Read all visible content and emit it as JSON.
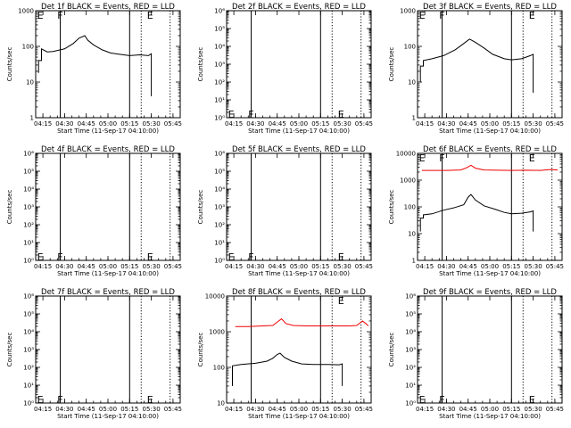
{
  "chart_data": [
    {
      "type": "line",
      "title": "Det 1f BLACK = Events, RED = LLD",
      "ylabel": "Counts/sec",
      "xlabel": "Start Time (11-Sep-17 04:10:00)",
      "xticks": [
        "04:15",
        "04:30",
        "04:45",
        "05:00",
        "05:15",
        "05:30",
        "05:45"
      ],
      "xlim": [
        "04:10",
        "05:50"
      ],
      "yscale": "log",
      "ylim": [
        1,
        1000
      ],
      "yticks": [
        "1",
        "10",
        "100",
        "1000"
      ],
      "markers": [
        {
          "label": "E",
          "x": "04:11",
          "y": 1000
        },
        {
          "label": "F",
          "x": "04:25",
          "y": 1000
        },
        {
          "label": "E",
          "x": "05:27",
          "y": 1000
        }
      ],
      "vlines_solid": [
        "04:27",
        "05:15"
      ],
      "vlines_dotted": [
        "05:23",
        "05:43"
      ],
      "series": [
        {
          "color": "#000000",
          "data": [
            [
              "04:12",
              18
            ],
            [
              "04:12",
              40
            ],
            [
              "04:14",
              40
            ],
            [
              "04:14",
              85
            ],
            [
              "04:18",
              70
            ],
            [
              "04:22",
              72
            ],
            [
              "04:30",
              85
            ],
            [
              "04:36",
              120
            ],
            [
              "04:40",
              170
            ],
            [
              "04:44",
              200
            ],
            [
              "04:46",
              150
            ],
            [
              "04:50",
              110
            ],
            [
              "04:56",
              80
            ],
            [
              "05:02",
              65
            ],
            [
              "05:08",
              60
            ],
            [
              "05:15",
              55
            ],
            [
              "05:22",
              58
            ],
            [
              "05:28",
              55
            ],
            [
              "05:30",
              62
            ],
            [
              "05:30",
              4
            ]
          ]
        }
      ]
    },
    {
      "type": "line",
      "title": "Det 2f BLACK = Events, RED = LLD",
      "ylabel": "Counts/sec",
      "xlabel": "Start Time (11-Sep-17 04:10:00)",
      "xticks": [
        "04:15",
        "04:30",
        "04:45",
        "05:00",
        "05:15",
        "05:30",
        "05:45"
      ],
      "xlim": [
        "04:10",
        "05:50"
      ],
      "yscale": "log",
      "ylim": [
        1,
        1000000
      ],
      "yticks": [
        "10⁰",
        "10¹",
        "10²",
        "10³",
        "10⁴",
        "10⁵",
        "10⁶"
      ],
      "markers": [
        {
          "label": "E",
          "x": "04:11",
          "y": 1.6
        },
        {
          "label": "F",
          "x": "04:25",
          "y": 1.6
        },
        {
          "label": "E",
          "x": "05:27",
          "y": 1.6
        }
      ],
      "vlines_solid": [
        "04:27",
        "05:15"
      ],
      "vlines_dotted": [
        "05:23",
        "05:43"
      ],
      "series": []
    },
    {
      "type": "line",
      "title": "Det 3f BLACK = Events, RED = LLD",
      "ylabel": "Counts/sec",
      "xlabel": "Start Time (11-Sep-17 04:10:00)",
      "xticks": [
        "04:15",
        "04:30",
        "04:45",
        "05:00",
        "05:15",
        "05:30",
        "05:45"
      ],
      "xlim": [
        "04:10",
        "05:50"
      ],
      "yscale": "log",
      "ylim": [
        1,
        1000
      ],
      "yticks": [
        "1",
        "10",
        "100",
        "1000"
      ],
      "markers": [
        {
          "label": "E",
          "x": "04:11",
          "y": 1000
        },
        {
          "label": "F",
          "x": "04:25",
          "y": 1000
        },
        {
          "label": "E",
          "x": "05:27",
          "y": 1000
        }
      ],
      "vlines_solid": [
        "04:27",
        "05:15"
      ],
      "vlines_dotted": [
        "05:23",
        "05:43"
      ],
      "series": [
        {
          "color": "#000000",
          "data": [
            [
              "04:12",
              10
            ],
            [
              "04:12",
              28
            ],
            [
              "04:14",
              28
            ],
            [
              "04:14",
              40
            ],
            [
              "04:20",
              45
            ],
            [
              "04:28",
              55
            ],
            [
              "04:36",
              80
            ],
            [
              "04:42",
              120
            ],
            [
              "04:46",
              160
            ],
            [
              "04:50",
              130
            ],
            [
              "04:56",
              90
            ],
            [
              "05:02",
              60
            ],
            [
              "05:10",
              45
            ],
            [
              "05:15",
              42
            ],
            [
              "05:22",
              45
            ],
            [
              "05:28",
              55
            ],
            [
              "05:30",
              60
            ],
            [
              "05:30",
              5
            ]
          ]
        }
      ]
    },
    {
      "type": "line",
      "title": "Det 4f BLACK = Events, RED = LLD",
      "ylabel": "Counts/sec",
      "xlabel": "Start Time (11-Sep-17 04:10:00)",
      "xticks": [
        "04:15",
        "04:30",
        "04:45",
        "05:00",
        "05:15",
        "05:30",
        "05:45"
      ],
      "xlim": [
        "04:10",
        "05:50"
      ],
      "yscale": "log",
      "ylim": [
        1,
        1000000
      ],
      "yticks": [
        "10⁰",
        "10¹",
        "10²",
        "10³",
        "10⁴",
        "10⁵",
        "10⁶"
      ],
      "markers": [
        {
          "label": "E",
          "x": "04:11",
          "y": 1.6
        },
        {
          "label": "F",
          "x": "04:25",
          "y": 1.6
        },
        {
          "label": "E",
          "x": "05:27",
          "y": 1.6
        }
      ],
      "vlines_solid": [
        "04:27",
        "05:15"
      ],
      "vlines_dotted": [
        "05:23",
        "05:43"
      ],
      "series": []
    },
    {
      "type": "line",
      "title": "Det 5f BLACK = Events, RED = LLD",
      "ylabel": "Counts/sec",
      "xlabel": "Start Time (11-Sep-17 04:10:00)",
      "xticks": [
        "04:15",
        "04:30",
        "04:45",
        "05:00",
        "05:15",
        "05:30",
        "05:45"
      ],
      "xlim": [
        "04:10",
        "05:50"
      ],
      "yscale": "log",
      "ylim": [
        1,
        1000000
      ],
      "yticks": [
        "10⁰",
        "10¹",
        "10²",
        "10³",
        "10⁴",
        "10⁵",
        "10⁶"
      ],
      "markers": [
        {
          "label": "E",
          "x": "04:11",
          "y": 1.6
        },
        {
          "label": "F",
          "x": "04:25",
          "y": 1.6
        },
        {
          "label": "E",
          "x": "05:27",
          "y": 1.6
        }
      ],
      "vlines_solid": [
        "04:27",
        "05:15"
      ],
      "vlines_dotted": [
        "05:23",
        "05:43"
      ],
      "series": []
    },
    {
      "type": "line",
      "title": "Det 6f BLACK = Events, RED = LLD",
      "ylabel": "Counts/sec",
      "xlabel": "Start Time (11-Sep-17 04:10:00)",
      "xticks": [
        "04:15",
        "04:30",
        "04:45",
        "05:00",
        "05:15",
        "05:30",
        "05:45"
      ],
      "xlim": [
        "04:10",
        "05:50"
      ],
      "yscale": "log",
      "ylim": [
        1,
        10000
      ],
      "yticks": [
        "1",
        "10",
        "100",
        "1000",
        "10000"
      ],
      "markers": [
        {
          "label": "E",
          "x": "04:11",
          "y": 10000
        },
        {
          "label": "F",
          "x": "04:25",
          "y": 10000
        },
        {
          "label": "E",
          "x": "05:27",
          "y": 10000
        }
      ],
      "vlines_solid": [
        "04:27",
        "05:15"
      ],
      "vlines_dotted": [
        "05:23",
        "05:43"
      ],
      "series": [
        {
          "color": "#ee0000",
          "data": [
            [
              "04:13",
              2300
            ],
            [
              "04:20",
              2300
            ],
            [
              "04:30",
              2300
            ],
            [
              "04:40",
              2400
            ],
            [
              "04:44",
              2900
            ],
            [
              "04:47",
              3600
            ],
            [
              "04:50",
              2800
            ],
            [
              "04:56",
              2400
            ],
            [
              "05:05",
              2350
            ],
            [
              "05:15",
              2300
            ],
            [
              "05:25",
              2350
            ],
            [
              "05:35",
              2300
            ],
            [
              "05:42",
              2500
            ],
            [
              "05:47",
              2400
            ]
          ]
        },
        {
          "color": "#000000",
          "data": [
            [
              "04:12",
              12
            ],
            [
              "04:12",
              38
            ],
            [
              "04:14",
              38
            ],
            [
              "04:14",
              50
            ],
            [
              "04:20",
              55
            ],
            [
              "04:28",
              75
            ],
            [
              "04:36",
              95
            ],
            [
              "04:42",
              120
            ],
            [
              "04:45",
              230
            ],
            [
              "04:47",
              290
            ],
            [
              "04:50",
              180
            ],
            [
              "04:56",
              110
            ],
            [
              "05:04",
              80
            ],
            [
              "05:10",
              62
            ],
            [
              "05:15",
              55
            ],
            [
              "05:22",
              58
            ],
            [
              "05:28",
              65
            ],
            [
              "05:30",
              70
            ],
            [
              "05:30",
              12
            ]
          ]
        }
      ]
    },
    {
      "type": "line",
      "title": "Det 7f BLACK = Events, RED = LLD",
      "ylabel": "Counts/sec",
      "xlabel": "Start Time (11-Sep-17 04:10:00)",
      "xticks": [
        "04:15",
        "04:30",
        "04:45",
        "05:00",
        "05:15",
        "05:30",
        "05:45"
      ],
      "xlim": [
        "04:10",
        "05:50"
      ],
      "yscale": "log",
      "ylim": [
        1,
        1000000
      ],
      "yticks": [
        "10⁰",
        "10¹",
        "10²",
        "10³",
        "10⁴",
        "10⁵",
        "10⁶"
      ],
      "markers": [
        {
          "label": "E",
          "x": "04:11",
          "y": 1.6
        },
        {
          "label": "F",
          "x": "04:25",
          "y": 1.6
        },
        {
          "label": "E",
          "x": "05:27",
          "y": 1.6
        }
      ],
      "vlines_solid": [
        "04:27",
        "05:15"
      ],
      "vlines_dotted": [
        "05:23",
        "05:43"
      ],
      "series": []
    },
    {
      "type": "line",
      "title": "Det 8f BLACK = Events, RED = LLD",
      "ylabel": "Counts/sec",
      "xlabel": "Start Time (11-Sep-17 04:10:00)",
      "xticks": [
        "04:15",
        "04:30",
        "04:45",
        "05:00",
        "05:15",
        "05:30",
        "05:45"
      ],
      "xlim": [
        "04:10",
        "05:50"
      ],
      "yscale": "log",
      "ylim": [
        10,
        10000
      ],
      "yticks": [
        "10",
        "100",
        "1000",
        "10000"
      ],
      "markers": [
        {
          "label": "E",
          "x": "05:27",
          "y": 10000
        }
      ],
      "vlines_solid": [
        "04:27",
        "05:15"
      ],
      "vlines_dotted": [
        "05:23",
        "05:43"
      ],
      "series": [
        {
          "color": "#ee0000",
          "data": [
            [
              "04:16",
              1400
            ],
            [
              "04:25",
              1400
            ],
            [
              "04:35",
              1450
            ],
            [
              "04:42",
              1500
            ],
            [
              "04:46",
              2000
            ],
            [
              "04:48",
              2300
            ],
            [
              "04:51",
              1700
            ],
            [
              "04:56",
              1500
            ],
            [
              "05:05",
              1450
            ],
            [
              "05:15",
              1450
            ],
            [
              "05:25",
              1450
            ],
            [
              "05:35",
              1450
            ],
            [
              "05:40",
              1500
            ],
            [
              "05:44",
              2000
            ],
            [
              "05:47",
              1600
            ],
            [
              "05:48",
              1450
            ]
          ]
        },
        {
          "color": "#000000",
          "data": [
            [
              "04:14",
              30
            ],
            [
              "04:14",
              110
            ],
            [
              "04:20",
              120
            ],
            [
              "04:30",
              130
            ],
            [
              "04:38",
              150
            ],
            [
              "04:42",
              180
            ],
            [
              "04:45",
              230
            ],
            [
              "04:47",
              250
            ],
            [
              "04:50",
              190
            ],
            [
              "04:55",
              150
            ],
            [
              "05:02",
              125
            ],
            [
              "05:10",
              120
            ],
            [
              "05:20",
              120
            ],
            [
              "05:28",
              118
            ],
            [
              "05:30",
              125
            ],
            [
              "05:30",
              30
            ]
          ]
        }
      ]
    },
    {
      "type": "line",
      "title": "Det 9f BLACK = Events, RED = LLD",
      "ylabel": "Counts/sec",
      "xlabel": "Start Time (11-Sep-17 04:10:00)",
      "xticks": [
        "04:15",
        "04:30",
        "04:45",
        "05:00",
        "05:15",
        "05:30",
        "05:45"
      ],
      "xlim": [
        "04:10",
        "05:50"
      ],
      "yscale": "log",
      "ylim": [
        1,
        1000000
      ],
      "yticks": [
        "10⁰",
        "10¹",
        "10²",
        "10³",
        "10⁴",
        "10⁵",
        "10⁶"
      ],
      "markers": [
        {
          "label": "E",
          "x": "04:11",
          "y": 1.6
        },
        {
          "label": "F",
          "x": "04:25",
          "y": 1.6
        },
        {
          "label": "E",
          "x": "05:27",
          "y": 1.6
        }
      ],
      "vlines_solid": [
        "04:27",
        "05:15"
      ],
      "vlines_dotted": [
        "05:23",
        "05:43"
      ],
      "series": []
    }
  ]
}
